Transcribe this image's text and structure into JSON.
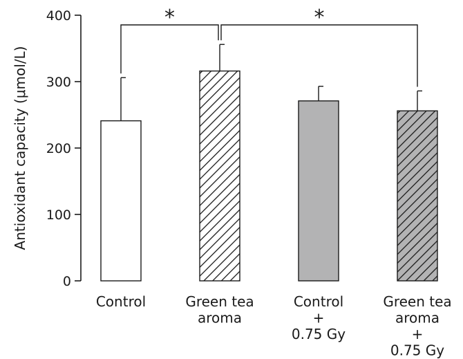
{
  "chart_data": {
    "type": "bar",
    "ylabel": "Antioxidant capacity (μmol/L)",
    "ylim": [
      0,
      400
    ],
    "yticks": [
      0,
      100,
      200,
      300,
      400
    ],
    "categories": [
      [
        "Control"
      ],
      [
        "Green tea",
        "aroma"
      ],
      [
        "Control",
        "+",
        "0.75 Gy"
      ],
      [
        "Green tea",
        "aroma",
        "+",
        "0.75 Gy"
      ]
    ],
    "values": [
      241,
      316,
      271,
      256
    ],
    "errors": [
      65,
      40,
      22,
      30
    ],
    "fills": [
      "white",
      "hatch-white",
      "gray",
      "hatch-gray"
    ],
    "significance": [
      {
        "from": 0,
        "to": 1,
        "label": "*"
      },
      {
        "from": 1,
        "to": 3,
        "label": "*"
      }
    ]
  },
  "colors": {
    "bar_gray": "#b3b3b4",
    "axis": "#1a1a1a"
  }
}
